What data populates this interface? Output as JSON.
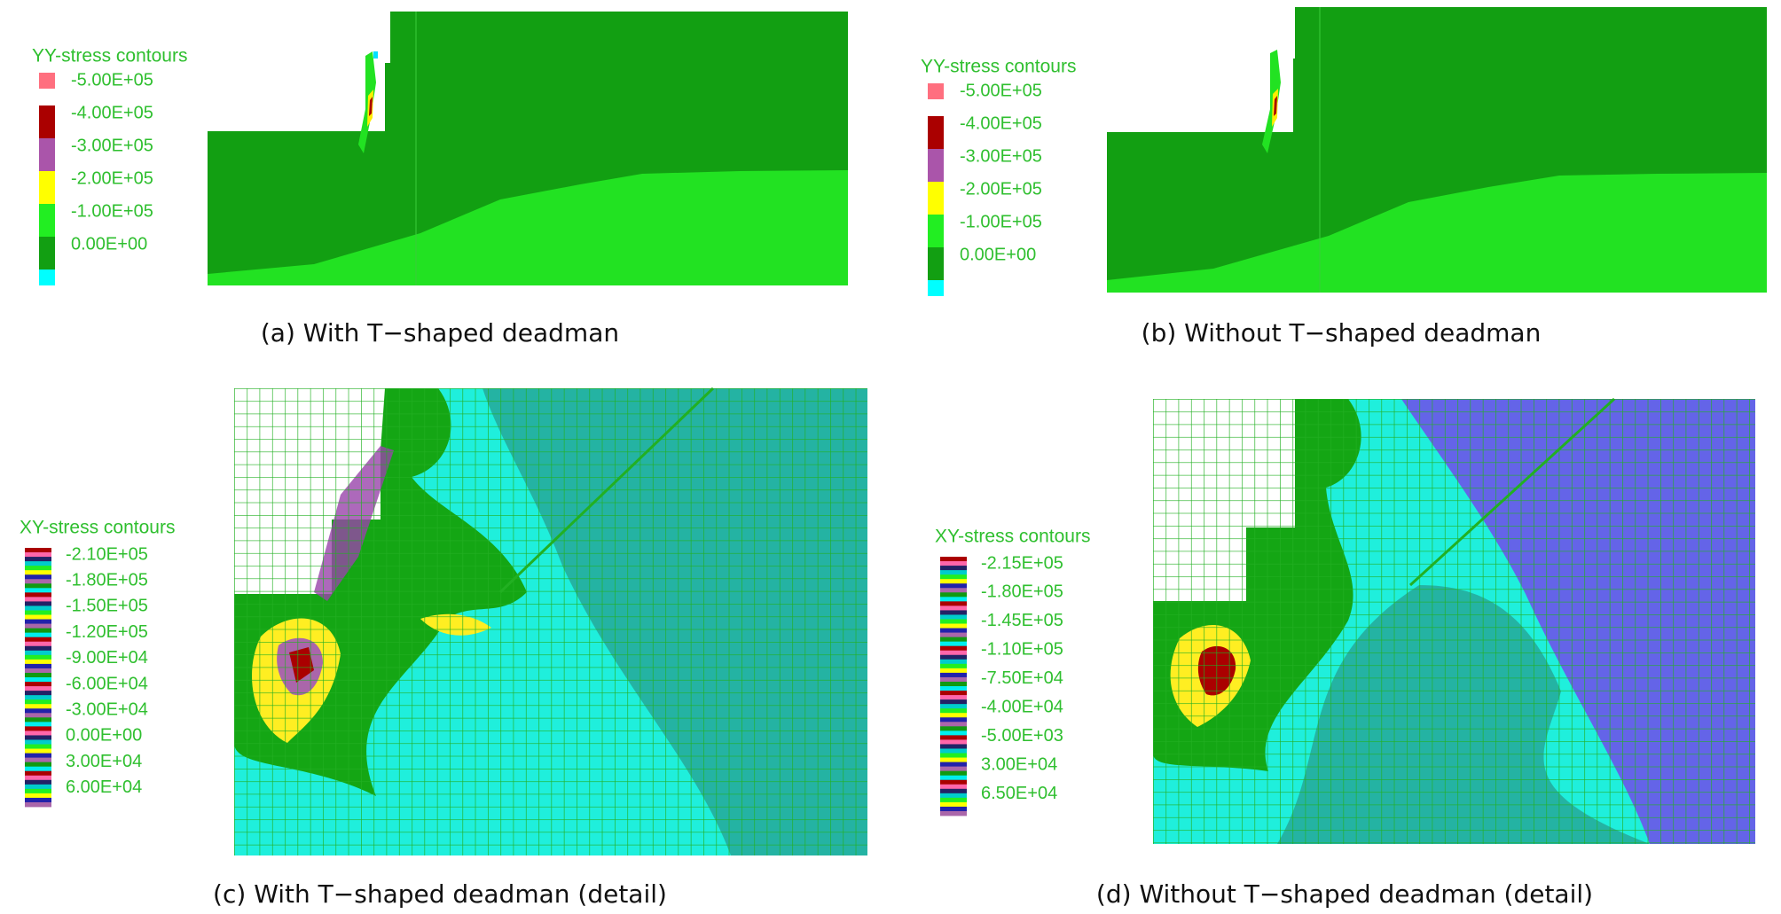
{
  "panels": [
    {
      "caption": "(a) With T−shaped deadman",
      "legend": {
        "title": "YY-stress contours",
        "labels": [
          "-5.00E+05",
          "-4.00E+05",
          "-3.00E+05",
          "-2.00E+05",
          "-1.00E+05",
          "0.00E+00"
        ]
      }
    },
    {
      "caption": "(b) Without T−shaped deadman",
      "legend": {
        "title": "YY-stress contours",
        "labels": [
          "-5.00E+05",
          "-4.00E+05",
          "-3.00E+05",
          "-2.00E+05",
          "-1.00E+05",
          "0.00E+00"
        ]
      }
    },
    {
      "caption": "(c) With T−shaped deadman (detail)",
      "legend": {
        "title": "XY-stress contours",
        "labels": [
          "-2.10E+05",
          "-1.80E+05",
          "-1.50E+05",
          "-1.20E+05",
          "-9.00E+04",
          "-6.00E+04",
          "-3.00E+04",
          "0.00E+00",
          "3.00E+04",
          "6.00E+04"
        ]
      }
    },
    {
      "caption": "(d) Without T−shaped deadman (detail)",
      "legend": {
        "title": "XY-stress contours",
        "labels": [
          "-2.15E+05",
          "-1.80E+05",
          "-1.45E+05",
          "-1.10E+05",
          "-7.50E+04",
          "-4.00E+04",
          "-5.00E+03",
          "3.00E+04",
          "6.50E+04"
        ]
      }
    }
  ]
}
